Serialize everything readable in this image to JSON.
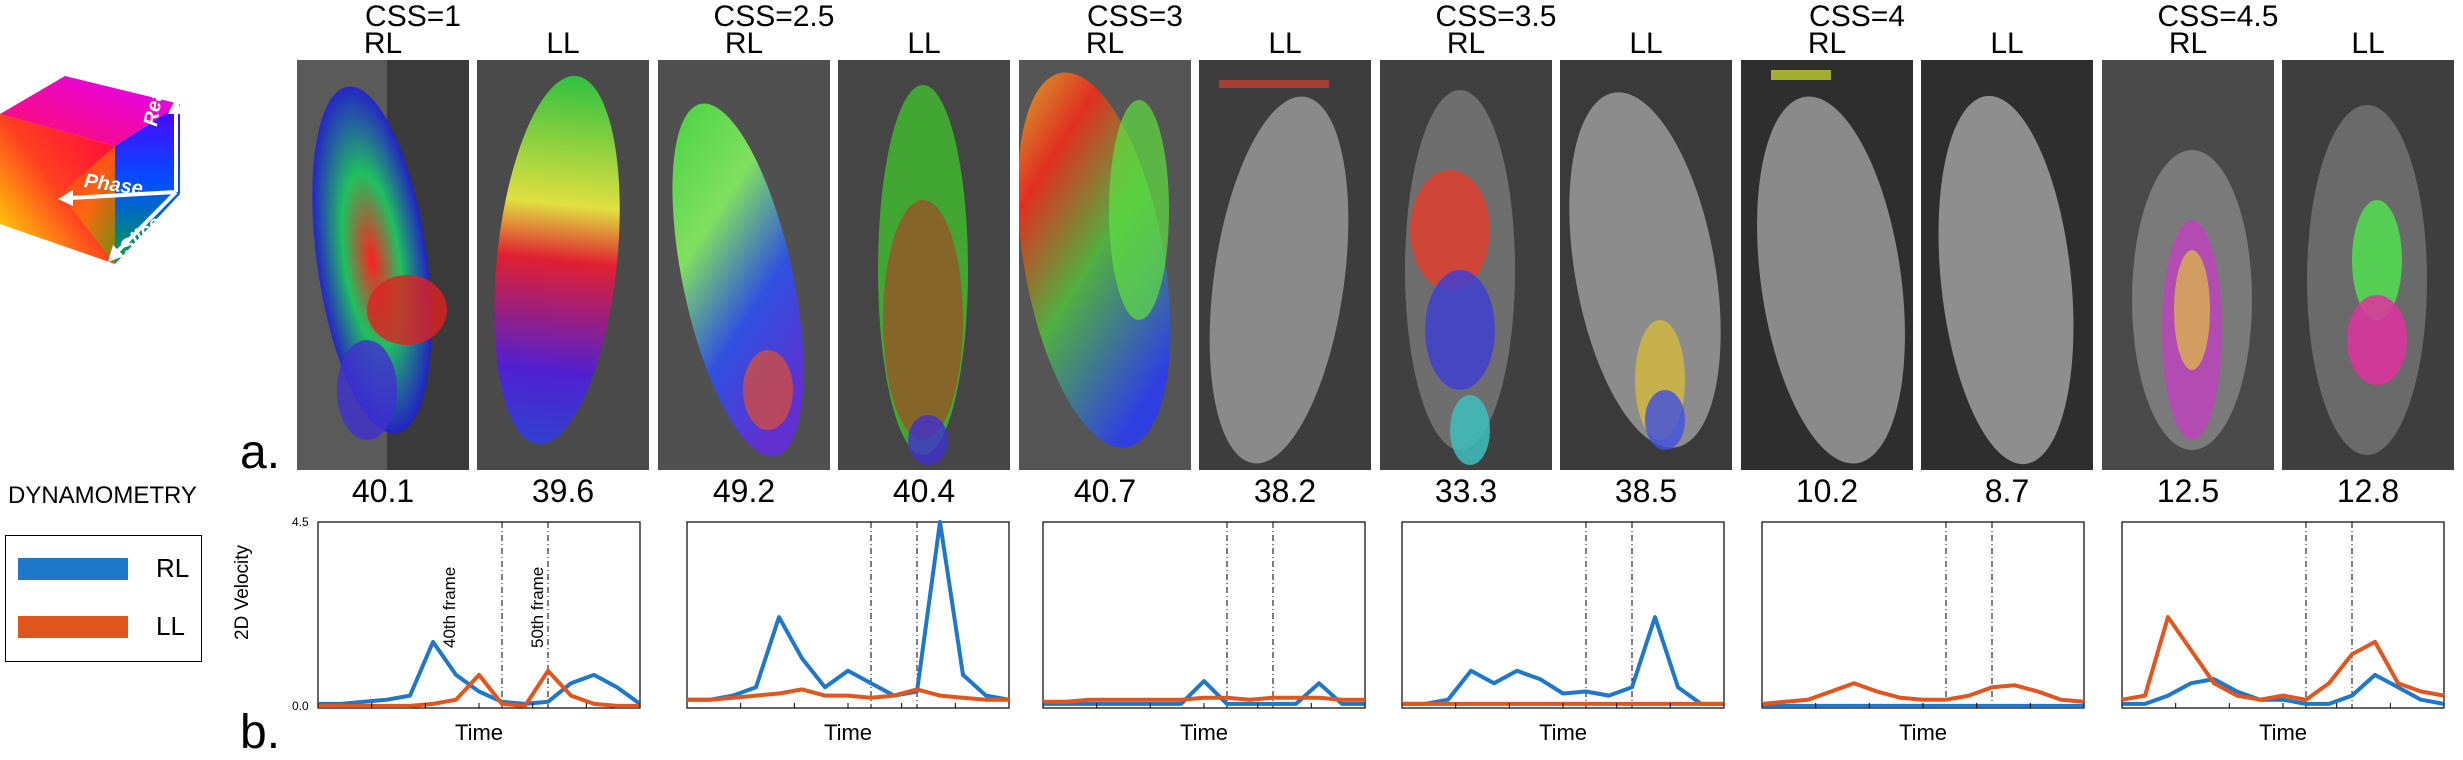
{
  "panel_a_label": "a.",
  "panel_b_label": "b.",
  "cube": {
    "readout_label": "Readout",
    "phase_label": "Phase",
    "slice_label": "Slice"
  },
  "dynamometry_label": "DYNAMOMETRY",
  "legend": {
    "items": [
      {
        "label": "RL",
        "color": "#1f77c9"
      },
      {
        "label": "LL",
        "color": "#e1561e"
      }
    ]
  },
  "groups": [
    {
      "css": "CSS=1",
      "rl": "RL",
      "ll": "LL",
      "rl_score": "40.1",
      "ll_score": "39.6"
    },
    {
      "css": "CSS=2.5",
      "rl": "RL",
      "ll": "LL",
      "rl_score": "49.2",
      "ll_score": "40.4"
    },
    {
      "css": "CSS=3",
      "rl": "RL",
      "ll": "LL",
      "rl_score": "40.7",
      "ll_score": "38.2"
    },
    {
      "css": "CSS=3.5",
      "rl": "RL",
      "ll": "LL",
      "rl_score": "33.3",
      "ll_score": "38.5"
    },
    {
      "css": "CSS=4",
      "rl": "RL",
      "ll": "LL",
      "rl_score": "10.2",
      "ll_score": "8.7"
    },
    {
      "css": "CSS=4.5",
      "rl": "RL",
      "ll": "LL",
      "rl_score": "12.5",
      "ll_score": "12.8"
    }
  ],
  "chart_data": {
    "type": "line",
    "ylabel": "2D Velocity",
    "xlabel": "Time",
    "ylim": [
      0.0,
      4.5
    ],
    "y_ticks": [
      "4.5",
      "0.0"
    ],
    "frame_annotations": [
      "40th frame",
      "50th frame"
    ],
    "frame_markers": [
      40,
      50
    ],
    "x": [
      0,
      5,
      10,
      15,
      20,
      25,
      30,
      35,
      40,
      45,
      50,
      55,
      60,
      65,
      70
    ],
    "panels": [
      {
        "name": "CSS=1",
        "series": [
          {
            "name": "RL",
            "values": [
              0.1,
              0.1,
              0.15,
              0.2,
              0.3,
              1.6,
              0.8,
              0.4,
              0.15,
              0.1,
              0.15,
              0.6,
              0.8,
              0.5,
              0.1
            ]
          },
          {
            "name": "LL",
            "values": [
              0.05,
              0.05,
              0.05,
              0.05,
              0.05,
              0.1,
              0.2,
              0.8,
              0.1,
              0.05,
              0.9,
              0.3,
              0.1,
              0.05,
              0.05
            ]
          }
        ]
      },
      {
        "name": "CSS=2.5",
        "series": [
          {
            "name": "RL",
            "values": [
              0.2,
              0.2,
              0.3,
              0.5,
              2.2,
              1.2,
              0.5,
              0.9,
              0.6,
              0.3,
              0.4,
              4.5,
              0.8,
              0.3,
              0.2
            ]
          },
          {
            "name": "LL",
            "values": [
              0.2,
              0.2,
              0.25,
              0.3,
              0.35,
              0.45,
              0.3,
              0.3,
              0.25,
              0.3,
              0.45,
              0.3,
              0.25,
              0.2,
              0.2
            ]
          }
        ]
      },
      {
        "name": "CSS=3",
        "series": [
          {
            "name": "RL",
            "values": [
              0.1,
              0.1,
              0.1,
              0.1,
              0.1,
              0.1,
              0.1,
              0.65,
              0.1,
              0.1,
              0.1,
              0.1,
              0.6,
              0.1,
              0.1
            ]
          },
          {
            "name": "LL",
            "values": [
              0.15,
              0.15,
              0.2,
              0.2,
              0.2,
              0.2,
              0.2,
              0.25,
              0.25,
              0.2,
              0.25,
              0.25,
              0.25,
              0.2,
              0.2
            ]
          }
        ]
      },
      {
        "name": "CSS=3.5",
        "series": [
          {
            "name": "RL",
            "values": [
              0.1,
              0.1,
              0.2,
              0.9,
              0.6,
              0.9,
              0.7,
              0.35,
              0.4,
              0.3,
              0.5,
              2.2,
              0.5,
              0.1,
              0.1
            ]
          },
          {
            "name": "LL",
            "values": [
              0.1,
              0.1,
              0.1,
              0.1,
              0.1,
              0.1,
              0.1,
              0.1,
              0.1,
              0.1,
              0.1,
              0.1,
              0.1,
              0.1,
              0.1
            ]
          }
        ]
      },
      {
        "name": "CSS=4",
        "series": [
          {
            "name": "RL",
            "values": [
              0.05,
              0.05,
              0.05,
              0.05,
              0.05,
              0.05,
              0.05,
              0.05,
              0.05,
              0.05,
              0.05,
              0.05,
              0.05,
              0.05,
              0.05
            ]
          },
          {
            "name": "LL",
            "values": [
              0.1,
              0.15,
              0.2,
              0.4,
              0.6,
              0.4,
              0.25,
              0.2,
              0.2,
              0.3,
              0.5,
              0.55,
              0.4,
              0.2,
              0.15
            ]
          }
        ]
      },
      {
        "name": "CSS=4.5",
        "series": [
          {
            "name": "RL",
            "values": [
              0.1,
              0.1,
              0.3,
              0.6,
              0.7,
              0.4,
              0.2,
              0.2,
              0.1,
              0.1,
              0.3,
              0.8,
              0.5,
              0.2,
              0.1
            ]
          },
          {
            "name": "LL",
            "values": [
              0.2,
              0.3,
              2.2,
              1.4,
              0.6,
              0.3,
              0.2,
              0.3,
              0.2,
              0.6,
              1.3,
              1.6,
              0.6,
              0.4,
              0.3
            ]
          }
        ]
      }
    ]
  }
}
